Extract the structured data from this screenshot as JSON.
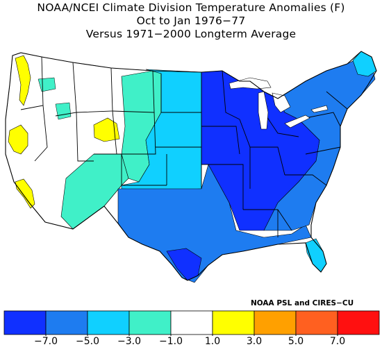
{
  "title": {
    "line1": "NOAA/NCEI Climate Division Temperature Anomalies (F)",
    "line2": "Oct to Jan 1976−77",
    "line3": "Versus 1971−2000 Longterm Average"
  },
  "credit": "NOAA PSL and CIRES−CU",
  "legend": {
    "colors": [
      "#1030ff",
      "#1e7cf0",
      "#10d0ff",
      "#40f0c8",
      "#ffffff",
      "#ffff00",
      "#ffa000",
      "#ff6020",
      "#ff1010"
    ],
    "ticks": [
      "−7.0",
      "−5.0",
      "−3.0",
      "−1.0",
      "1.0",
      "3.0",
      "5.0",
      "7.0"
    ]
  },
  "map": {
    "regions": [
      {
        "name": "west-neutral",
        "anomaly_class": "-1 to 1"
      },
      {
        "name": "pacific-northwest-warm",
        "anomaly_class": "1 to 3"
      },
      {
        "name": "northern-california-warm",
        "anomaly_class": "1 to 3"
      },
      {
        "name": "southern-california-warm",
        "anomaly_class": "1 to 3"
      },
      {
        "name": "southwest-idaho-warm",
        "anomaly_class": "1 to 3"
      },
      {
        "name": "northern-plains-cool",
        "anomaly_class": "-3 to -1"
      },
      {
        "name": "southwest-cool",
        "anomaly_class": "-3 to -1"
      },
      {
        "name": "central-plains-cold",
        "anomaly_class": "-5 to -3"
      },
      {
        "name": "florida-cold",
        "anomaly_class": "-5 to -3"
      },
      {
        "name": "texas-south-colder",
        "anomaly_class": "-7 to -5"
      },
      {
        "name": "east-colder",
        "anomaly_class": "-7 to -5"
      },
      {
        "name": "midwest-coldest",
        "anomaly_class": "< -7"
      },
      {
        "name": "texas-south-tip",
        "anomaly_class": "< -7"
      }
    ]
  }
}
